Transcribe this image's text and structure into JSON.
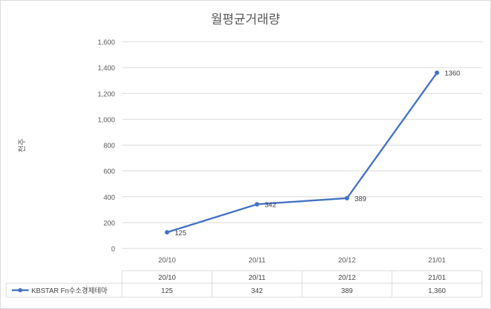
{
  "chart_data": {
    "type": "line",
    "title": "월평균거래량",
    "ylabel": "천주",
    "xlabel": "",
    "categories": [
      "20/10",
      "20/11",
      "20/12",
      "21/01"
    ],
    "yticks": [
      "0",
      "200",
      "400",
      "600",
      "800",
      "1,000",
      "1,200",
      "1,400",
      "1,600"
    ],
    "ylim": [
      0,
      1600
    ],
    "grid": true,
    "series": [
      {
        "name": "KBSTAR Fn수소경제테마",
        "values": [
          125,
          342,
          389,
          1360
        ],
        "labels": [
          "125",
          "342",
          "389",
          "1360"
        ],
        "table_values": [
          "125",
          "342",
          "389",
          "1,360"
        ],
        "color": "#4472c4"
      }
    ],
    "data_table": true
  }
}
